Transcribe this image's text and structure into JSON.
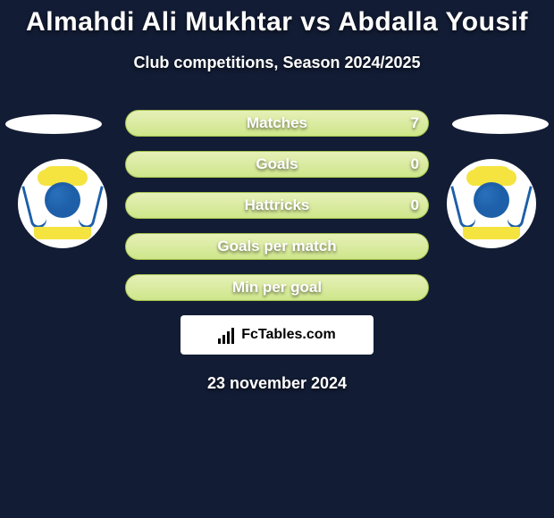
{
  "header": {
    "title": "Almahdi Ali Mukhtar vs Abdalla Yousif",
    "subtitle": "Club competitions, Season 2024/2025"
  },
  "stats": [
    {
      "label": "Matches",
      "value": "7"
    },
    {
      "label": "Goals",
      "value": "0"
    },
    {
      "label": "Hattricks",
      "value": "0"
    },
    {
      "label": "Goals per match",
      "value": ""
    },
    {
      "label": "Min per goal",
      "value": ""
    }
  ],
  "branding": {
    "site_name": "FcTables.com"
  },
  "date": "23 november 2024",
  "style": {
    "background_color": "#121c34",
    "bar_fill_top": "#e6f0b8",
    "bar_fill_bottom": "#cee68a",
    "bar_border": "#a5c24e",
    "club_primary": "#1d5fa8",
    "club_accent": "#f5e340"
  }
}
